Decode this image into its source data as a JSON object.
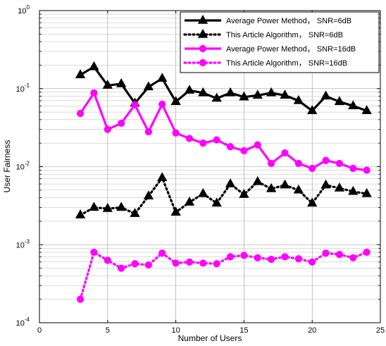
{
  "chart_data": {
    "type": "line",
    "title": "",
    "xlabel": "Number of Users",
    "ylabel": "User Fairness",
    "x_scale": "linear",
    "y_scale": "log",
    "xlim": [
      0,
      25
    ],
    "ylim": [
      0.0001,
      1
    ],
    "grid": true,
    "legend_position": "top-right",
    "x_ticks": [
      "0",
      "5",
      "10",
      "15",
      "20",
      "25"
    ],
    "y_ticks": [
      {
        "base": "10",
        "exp": "0"
      },
      {
        "base": "10",
        "exp": "-1"
      },
      {
        "base": "10",
        "exp": "-2"
      },
      {
        "base": "10",
        "exp": "-3"
      },
      {
        "base": "10",
        "exp": "-4"
      }
    ],
    "x": [
      3,
      4,
      5,
      6,
      7,
      8,
      9,
      10,
      11,
      12,
      13,
      14,
      15,
      16,
      17,
      18,
      19,
      20,
      21,
      22,
      23,
      24
    ],
    "series": [
      {
        "name": "Average Power Method， SNR=6dB",
        "color": "#000000",
        "line": "solid",
        "marker": "triangle",
        "values": [
          0.15,
          0.19,
          0.11,
          0.115,
          0.065,
          0.105,
          0.135,
          0.068,
          0.095,
          0.088,
          0.075,
          0.088,
          0.078,
          0.082,
          0.088,
          0.082,
          0.07,
          0.052,
          0.08,
          0.068,
          0.06,
          0.052
        ]
      },
      {
        "name": "This Article Algorithm， SNR=6dB",
        "color": "#000000",
        "line": "dotted",
        "marker": "triangle",
        "values": [
          0.0024,
          0.003,
          0.0029,
          0.003,
          0.0025,
          0.0042,
          0.0072,
          0.0026,
          0.0035,
          0.0045,
          0.0034,
          0.006,
          0.0044,
          0.0064,
          0.0052,
          0.0058,
          0.005,
          0.0034,
          0.0058,
          0.0053,
          0.0048,
          0.0045
        ]
      },
      {
        "name": "Average Power Method， SNR=16dB",
        "color": "#ff00ff",
        "line": "solid",
        "marker": "circle",
        "values": [
          0.048,
          0.088,
          0.03,
          0.036,
          0.062,
          0.028,
          0.063,
          0.027,
          0.023,
          0.02,
          0.022,
          0.018,
          0.016,
          0.019,
          0.011,
          0.015,
          0.011,
          0.0095,
          0.012,
          0.011,
          0.0095,
          0.009
        ]
      },
      {
        "name": "This Article Algorithm， SNR=16dB",
        "color": "#ff00ff",
        "line": "dotted",
        "marker": "circle",
        "values": [
          0.0002,
          0.0008,
          0.00063,
          0.0005,
          0.00057,
          0.00055,
          0.00078,
          0.00058,
          0.0006,
          0.00058,
          0.00057,
          0.0007,
          0.00073,
          0.00068,
          0.00065,
          0.0007,
          0.00066,
          0.0006,
          0.00078,
          0.00075,
          0.00068,
          0.0008
        ]
      }
    ]
  }
}
